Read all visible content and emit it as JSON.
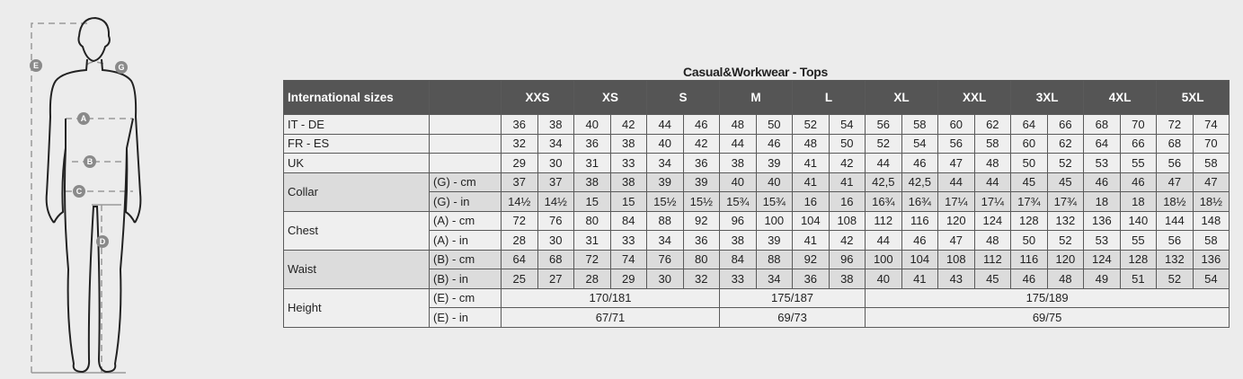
{
  "title": "Casual&Workwear - Tops",
  "figure_labels": [
    "E",
    "G",
    "A",
    "B",
    "C",
    "D"
  ],
  "header": {
    "first": "International sizes",
    "sizes": [
      "XXS",
      "XS",
      "S",
      "M",
      "L",
      "XL",
      "XXL",
      "3XL",
      "4XL",
      "5XL"
    ]
  },
  "rows": [
    {
      "label": "IT - DE",
      "sub": "",
      "shade": false,
      "values": [
        "36",
        "38",
        "40",
        "42",
        "44",
        "46",
        "48",
        "50",
        "52",
        "54",
        "56",
        "58",
        "60",
        "62",
        "64",
        "66",
        "68",
        "70",
        "72",
        "74"
      ]
    },
    {
      "label": "FR - ES",
      "sub": "",
      "shade": false,
      "values": [
        "32",
        "34",
        "36",
        "38",
        "40",
        "42",
        "44",
        "46",
        "48",
        "50",
        "52",
        "54",
        "56",
        "58",
        "60",
        "62",
        "64",
        "66",
        "68",
        "70"
      ]
    },
    {
      "label": "UK",
      "sub": "",
      "shade": false,
      "values": [
        "29",
        "30",
        "31",
        "33",
        "34",
        "36",
        "38",
        "39",
        "41",
        "42",
        "44",
        "46",
        "47",
        "48",
        "50",
        "52",
        "53",
        "55",
        "56",
        "58"
      ]
    },
    {
      "label": "Collar",
      "sub": "(G) - cm",
      "shade": true,
      "values": [
        "37",
        "37",
        "38",
        "38",
        "39",
        "39",
        "40",
        "40",
        "41",
        "41",
        "42,5",
        "42,5",
        "44",
        "44",
        "45",
        "45",
        "46",
        "46",
        "47",
        "47"
      ]
    },
    {
      "label": "",
      "sub": "(G)  - in",
      "shade": true,
      "values": [
        "14½",
        "14½",
        "15",
        "15",
        "15½",
        "15½",
        "15¾",
        "15¾",
        "16",
        "16",
        "16¾",
        "16¾",
        "17¼",
        "17¼",
        "17¾",
        "17¾",
        "18",
        "18",
        "18½",
        "18½"
      ]
    },
    {
      "label": "Chest",
      "sub": "(A) - cm",
      "shade": false,
      "values": [
        "72",
        "76",
        "80",
        "84",
        "88",
        "92",
        "96",
        "100",
        "104",
        "108",
        "112",
        "116",
        "120",
        "124",
        "128",
        "132",
        "136",
        "140",
        "144",
        "148"
      ]
    },
    {
      "label": "",
      "sub": "(A) - in",
      "shade": false,
      "values": [
        "28",
        "30",
        "31",
        "33",
        "34",
        "36",
        "38",
        "39",
        "41",
        "42",
        "44",
        "46",
        "47",
        "48",
        "50",
        "52",
        "53",
        "55",
        "56",
        "58"
      ]
    },
    {
      "label": "Waist",
      "sub": "(B) - cm",
      "shade": true,
      "values": [
        "64",
        "68",
        "72",
        "74",
        "76",
        "80",
        "84",
        "88",
        "92",
        "96",
        "100",
        "104",
        "108",
        "112",
        "116",
        "120",
        "124",
        "128",
        "132",
        "136"
      ]
    },
    {
      "label": "",
      "sub": "(B) - in",
      "shade": true,
      "values": [
        "25",
        "27",
        "28",
        "29",
        "30",
        "32",
        "33",
        "34",
        "36",
        "38",
        "40",
        "41",
        "43",
        "45",
        "46",
        "48",
        "49",
        "51",
        "52",
        "54"
      ]
    },
    {
      "label": "Height",
      "sub": "(E) - cm",
      "shade": false,
      "groups": [
        {
          "span_sizes": [
            "XXS",
            "XS",
            "S"
          ],
          "value": "170/181"
        },
        {
          "span_sizes": [
            "M",
            "L"
          ],
          "value": "175/187"
        },
        {
          "span_sizes": [
            "XL",
            "XXL",
            "3XL",
            "4XL",
            "5XL"
          ],
          "value": "175/189"
        }
      ]
    },
    {
      "label": "",
      "sub": "(E) - in",
      "shade": false,
      "groups": [
        {
          "span_sizes": [
            "XXS",
            "XS",
            "S"
          ],
          "value": "67/71"
        },
        {
          "span_sizes": [
            "M",
            "L"
          ],
          "value": "69/73"
        },
        {
          "span_sizes": [
            "XL",
            "XXL",
            "3XL",
            "4XL",
            "5XL"
          ],
          "value": "69/75"
        }
      ]
    }
  ]
}
